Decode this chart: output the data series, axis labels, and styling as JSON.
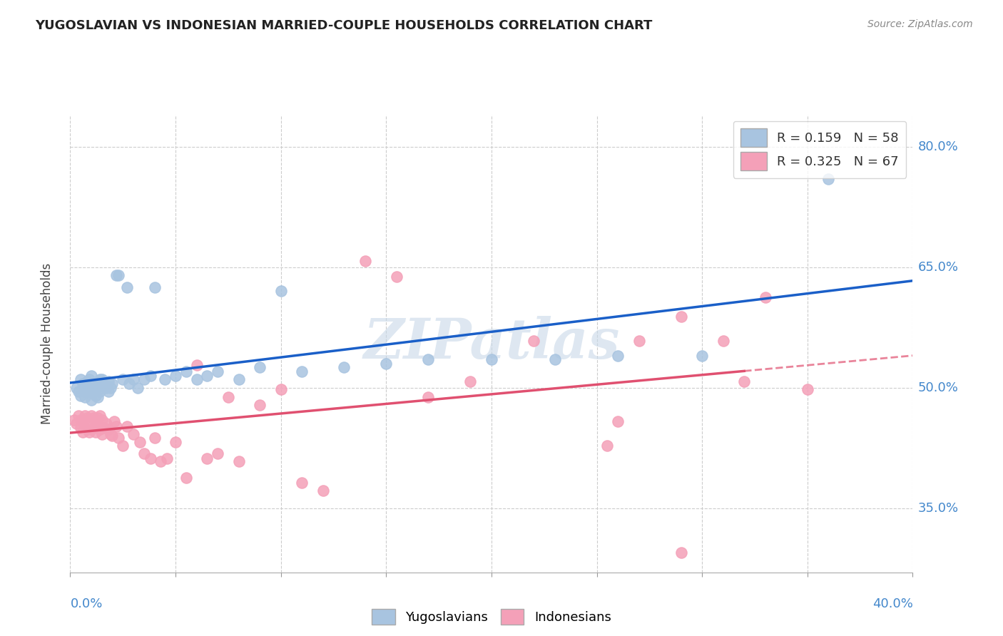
{
  "title": "YUGOSLAVIAN VS INDONESIAN MARRIED-COUPLE HOUSEHOLDS CORRELATION CHART",
  "source": "Source: ZipAtlas.com",
  "xlabel_bottom_left": "0.0%",
  "xlabel_bottom_right": "40.0%",
  "ylabel_ticks": [
    0.35,
    0.5,
    0.65,
    0.8
  ],
  "ylabel_tick_labels": [
    "35.0%",
    "50.0%",
    "65.0%",
    "80.0%"
  ],
  "xmin": 0.0,
  "xmax": 0.4,
  "ymin": 0.27,
  "ymax": 0.84,
  "r_yugoslavian": 0.159,
  "n_yugoslavian": 58,
  "r_indonesian": 0.325,
  "n_indonesian": 67,
  "color_yugoslavian": "#a8c4e0",
  "color_indonesian": "#f4a0b8",
  "line_color_yugoslavian": "#1a5fc8",
  "line_color_indonesian": "#e05070",
  "watermark": "ZIPatlas",
  "watermark_color": "#c8d8e8",
  "background_color": "#ffffff",
  "yugoslavian_x": [
    0.003,
    0.004,
    0.005,
    0.005,
    0.006,
    0.007,
    0.007,
    0.008,
    0.008,
    0.009,
    0.009,
    0.01,
    0.01,
    0.01,
    0.011,
    0.011,
    0.012,
    0.012,
    0.013,
    0.013,
    0.014,
    0.014,
    0.015,
    0.015,
    0.016,
    0.017,
    0.018,
    0.018,
    0.019,
    0.02,
    0.022,
    0.023,
    0.025,
    0.027,
    0.028,
    0.03,
    0.032,
    0.035,
    0.038,
    0.04,
    0.045,
    0.05,
    0.055,
    0.06,
    0.065,
    0.07,
    0.08,
    0.09,
    0.1,
    0.11,
    0.13,
    0.15,
    0.17,
    0.2,
    0.23,
    0.26,
    0.3,
    0.36
  ],
  "yugoslavian_y": [
    0.5,
    0.495,
    0.51,
    0.49,
    0.505,
    0.488,
    0.495,
    0.5,
    0.508,
    0.495,
    0.51,
    0.485,
    0.5,
    0.515,
    0.495,
    0.505,
    0.49,
    0.5,
    0.488,
    0.505,
    0.51,
    0.495,
    0.5,
    0.51,
    0.505,
    0.5,
    0.495,
    0.508,
    0.5,
    0.505,
    0.64,
    0.64,
    0.51,
    0.625,
    0.505,
    0.51,
    0.5,
    0.51,
    0.515,
    0.625,
    0.51,
    0.515,
    0.52,
    0.51,
    0.515,
    0.52,
    0.51,
    0.525,
    0.62,
    0.52,
    0.525,
    0.53,
    0.535,
    0.535,
    0.535,
    0.54,
    0.54,
    0.76
  ],
  "indonesian_x": [
    0.002,
    0.003,
    0.004,
    0.005,
    0.005,
    0.006,
    0.006,
    0.007,
    0.007,
    0.008,
    0.008,
    0.009,
    0.009,
    0.01,
    0.01,
    0.011,
    0.011,
    0.012,
    0.012,
    0.013,
    0.013,
    0.014,
    0.014,
    0.015,
    0.015,
    0.016,
    0.017,
    0.018,
    0.019,
    0.02,
    0.021,
    0.022,
    0.023,
    0.025,
    0.027,
    0.03,
    0.033,
    0.035,
    0.038,
    0.04,
    0.043,
    0.046,
    0.05,
    0.055,
    0.06,
    0.065,
    0.07,
    0.075,
    0.08,
    0.09,
    0.1,
    0.11,
    0.12,
    0.14,
    0.155,
    0.17,
    0.19,
    0.22,
    0.255,
    0.27,
    0.29,
    0.32,
    0.35,
    0.26,
    0.29,
    0.31,
    0.33
  ],
  "indonesian_y": [
    0.46,
    0.455,
    0.465,
    0.45,
    0.46,
    0.445,
    0.46,
    0.45,
    0.465,
    0.448,
    0.462,
    0.445,
    0.458,
    0.448,
    0.465,
    0.45,
    0.462,
    0.445,
    0.46,
    0.45,
    0.462,
    0.448,
    0.465,
    0.442,
    0.46,
    0.45,
    0.455,
    0.448,
    0.442,
    0.44,
    0.458,
    0.452,
    0.438,
    0.428,
    0.452,
    0.442,
    0.432,
    0.418,
    0.412,
    0.438,
    0.408,
    0.412,
    0.432,
    0.388,
    0.528,
    0.412,
    0.418,
    0.488,
    0.408,
    0.478,
    0.498,
    0.382,
    0.372,
    0.658,
    0.638,
    0.488,
    0.508,
    0.558,
    0.428,
    0.558,
    0.588,
    0.508,
    0.498,
    0.458,
    0.295,
    0.558,
    0.612
  ]
}
